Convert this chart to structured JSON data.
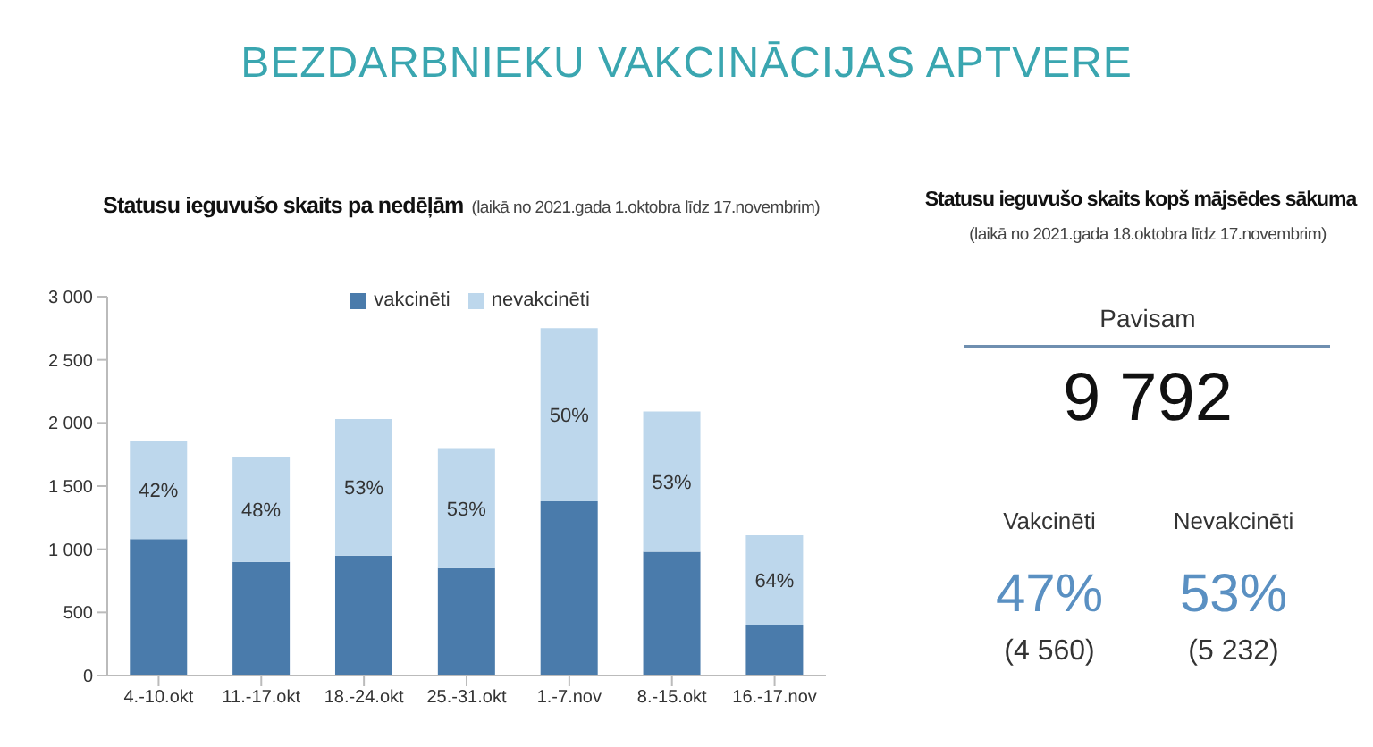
{
  "chart_data": [
    {
      "type": "bar",
      "title": "Statusu ieguvušo skaits pa nedēļām",
      "subtitle": "(laikā no 2021.gada 1.oktobra līdz 17.novembrim)",
      "categories": [
        "4.-10.okt",
        "11.-17.okt",
        "18.-24.okt",
        "25.-31.okt",
        "1.-7.nov",
        "8.-15.okt",
        "16.-17.nov"
      ],
      "stacked": true,
      "annotations": [
        "BEZDARBNIEKU VAKCINĀCIJAS APTVERE",
        "42%",
        "48%",
        "53%",
        "53%",
        "50%",
        "53%",
        "64%"
      ],
      "series": [
        {
          "name": "vakcinēti",
          "color": "#4a7bab",
          "values": [
            1080,
            900,
            950,
            850,
            1380,
            980,
            400
          ]
        },
        {
          "name": "nevakcinēti",
          "color": "#bdd7ec",
          "values": [
            780,
            830,
            1080,
            950,
            1370,
            1110,
            710
          ]
        }
      ],
      "ylim": [
        0,
        3000
      ],
      "yticks": [
        0,
        {
          "value": 500,
          "label": "500"
        },
        {
          "value": 1000,
          "label": "1 000"
        },
        {
          "value": 1500,
          "label": "1 500"
        },
        {
          "value": 2000,
          "label": "2 000"
        },
        {
          "value": 2500,
          "label": "2 500"
        },
        {
          "value": 3000,
          "label": "3 000"
        }
      ],
      "legend": "top"
    },
    {
      "type": "other",
      "title": "Statusu ieguvušo skaits kopš mājsēdes sākuma",
      "subtitle": "(laikā no 2021.gada 18.oktobra līdz 17.novembrim)",
      "annotations": [
        "Pavisam",
        "9 792",
        "Vakcinēti",
        "47%",
        "(4 560)",
        "Nevakcinēti",
        "53%",
        "(5 232)"
      ]
    }
  ]
}
